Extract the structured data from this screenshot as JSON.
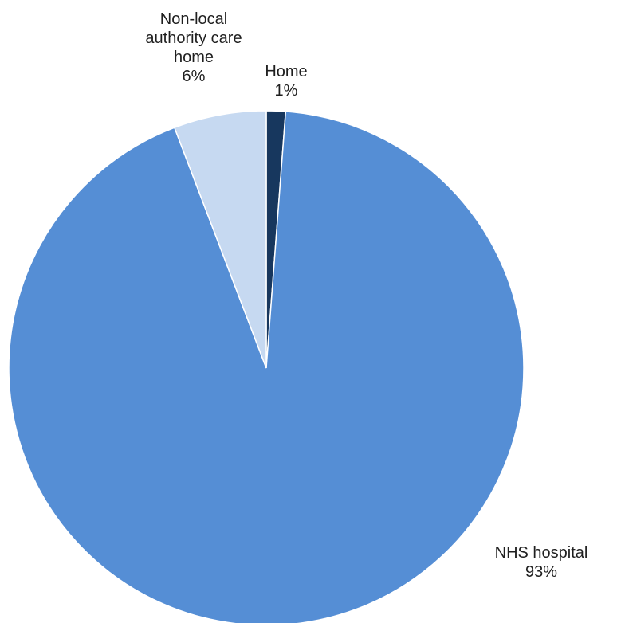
{
  "chart_data": {
    "type": "pie",
    "title": "",
    "slices": [
      {
        "label": [
          "Home"
        ],
        "value": 1.2,
        "percent_label": "1%",
        "color": "#17375e"
      },
      {
        "label": [
          "NHS hospital"
        ],
        "value": 93,
        "percent_label": "93%",
        "color": "#558ed5"
      },
      {
        "label": [
          "Non-local",
          "authority care",
          "home"
        ],
        "value": 5.8,
        "percent_label": "6%",
        "color": "#c6d9f1"
      }
    ],
    "start_angle_deg": 0,
    "direction": "clockwise",
    "legend": "none"
  }
}
